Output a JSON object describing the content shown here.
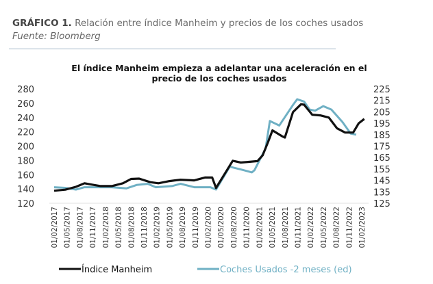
{
  "header": {
    "label": "GRÁFICO 1.",
    "title": "Relación entre índice Manheim y precios de los coches usados",
    "source": "Fuente: Bloomberg"
  },
  "chart_data": {
    "type": "line",
    "title_line1": "El índice Manheim empieza a adelantar una aceleración en el",
    "title_line2": "precio de los coches usados",
    "x_unit": "months since 01/02/2017",
    "x_ticks": [
      "01/02/2017",
      "01/05/2017",
      "01/08/2017",
      "01/11/2017",
      "01/02/2018",
      "01/05/2018",
      "01/08/2018",
      "01/11/2018",
      "01/02/2019",
      "01/05/2019",
      "01/08/2019",
      "01/11/2019",
      "01/02/2020",
      "01/05/2020",
      "01/08/2020",
      "01/11/2020",
      "01/02/2021",
      "01/05/2021",
      "01/08/2021",
      "01/11/2021",
      "01/02/2022",
      "01/05/2022",
      "01/08/2022",
      "01/11/2022",
      "01/02/2023"
    ],
    "y_left": {
      "ticks": [
        "280",
        "260",
        "240",
        "220",
        "200",
        "180",
        "160",
        "140",
        "120"
      ],
      "range": [
        120,
        280
      ]
    },
    "y_right": {
      "ticks": [
        "225",
        "215",
        "205",
        "195",
        "185",
        "175",
        "165",
        "155",
        "145",
        "135",
        "125"
      ],
      "range": [
        125,
        225
      ]
    },
    "legend_position": "bottom",
    "colors": {
      "manheim": "#111111",
      "coches": "#6fb0c4"
    },
    "series": [
      {
        "name": "Índice Manheim",
        "axis": "left",
        "points": [
          [
            0,
            137.5
          ],
          [
            2.6,
            139
          ],
          [
            5.1,
            143
          ],
          [
            7.1,
            148
          ],
          [
            9,
            146
          ],
          [
            10.9,
            144
          ],
          [
            13.5,
            144
          ],
          [
            16.1,
            148
          ],
          [
            18,
            154
          ],
          [
            19.9,
            154.5
          ],
          [
            22.5,
            149.5
          ],
          [
            24.4,
            148
          ],
          [
            27,
            151
          ],
          [
            29.6,
            153
          ],
          [
            32.8,
            152
          ],
          [
            35.3,
            156
          ],
          [
            37,
            156
          ],
          [
            37.9,
            141.5
          ],
          [
            39.8,
            160
          ],
          [
            41.8,
            179.5
          ],
          [
            43.7,
            177
          ],
          [
            45.6,
            178
          ],
          [
            47.6,
            179
          ],
          [
            48.8,
            187
          ],
          [
            50.1,
            206
          ],
          [
            51.1,
            222
          ],
          [
            53.3,
            214
          ],
          [
            54,
            212
          ],
          [
            55.9,
            247.5
          ],
          [
            57.8,
            258.6
          ],
          [
            58.5,
            258
          ],
          [
            60.4,
            244
          ],
          [
            62.3,
            243
          ],
          [
            64.3,
            240
          ],
          [
            66.2,
            225
          ],
          [
            68.1,
            219
          ],
          [
            70,
            219
          ],
          [
            71.3,
            232
          ],
          [
            72.6,
            238
          ]
        ]
      },
      {
        "name": "Coches Usados -2 meses (ed)",
        "axis": "right",
        "points": [
          [
            0,
            139
          ],
          [
            2.6,
            138.5
          ],
          [
            5.1,
            137
          ],
          [
            7.1,
            139
          ],
          [
            10,
            139
          ],
          [
            13.5,
            139
          ],
          [
            16.9,
            138
          ],
          [
            19.3,
            141
          ],
          [
            21.9,
            142
          ],
          [
            23.8,
            139
          ],
          [
            27.6,
            140
          ],
          [
            29.6,
            142
          ],
          [
            32.8,
            139
          ],
          [
            36.6,
            139
          ],
          [
            37.9,
            137
          ],
          [
            41.1,
            157
          ],
          [
            44.3,
            154
          ],
          [
            46.3,
            152
          ],
          [
            46.9,
            154
          ],
          [
            49.5,
            173
          ],
          [
            50.5,
            197
          ],
          [
            52.7,
            193
          ],
          [
            55.9,
            211
          ],
          [
            56.9,
            216
          ],
          [
            58.5,
            214
          ],
          [
            59.8,
            207
          ],
          [
            61.1,
            206
          ],
          [
            63,
            210
          ],
          [
            64.9,
            207
          ],
          [
            67.5,
            196
          ],
          [
            69.4,
            186
          ],
          [
            70.7,
            185
          ]
        ]
      }
    ]
  }
}
